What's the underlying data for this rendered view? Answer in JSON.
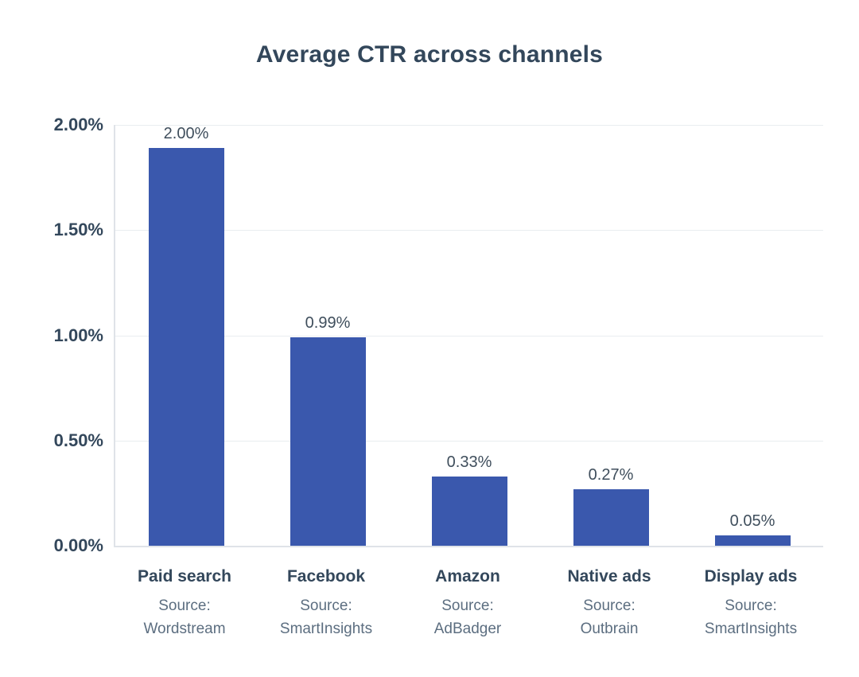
{
  "chart_data": {
    "type": "bar",
    "title": "Average CTR across channels",
    "categories": [
      "Paid search",
      "Facebook",
      "Amazon",
      "Native ads",
      "Display ads"
    ],
    "values": [
      2.0,
      0.99,
      0.33,
      0.27,
      0.05
    ],
    "value_labels": [
      "2.00%",
      "0.99%",
      "0.33%",
      "0.27%",
      "0.05%"
    ],
    "source_prefix": "Source:",
    "sources": [
      "Wordstream",
      "SmartInsights",
      "AdBadger",
      "Outbrain",
      "SmartInsights"
    ],
    "y_ticks": [
      "2.00%",
      "1.50%",
      "1.00%",
      "0.50%",
      "0.00%"
    ],
    "ylim": [
      0,
      2.0
    ],
    "xlabel": "",
    "ylabel": "",
    "grid": true,
    "legend": false
  },
  "colors": {
    "bar": "#3a58ad",
    "title_text": "#33475b",
    "tick_text": "#33475b",
    "value_text": "#3f4e5c",
    "source_text": "#5c6e80",
    "gridline": "#e9edf0",
    "axis_line": "#dfe3e8",
    "background": "#ffffff"
  }
}
